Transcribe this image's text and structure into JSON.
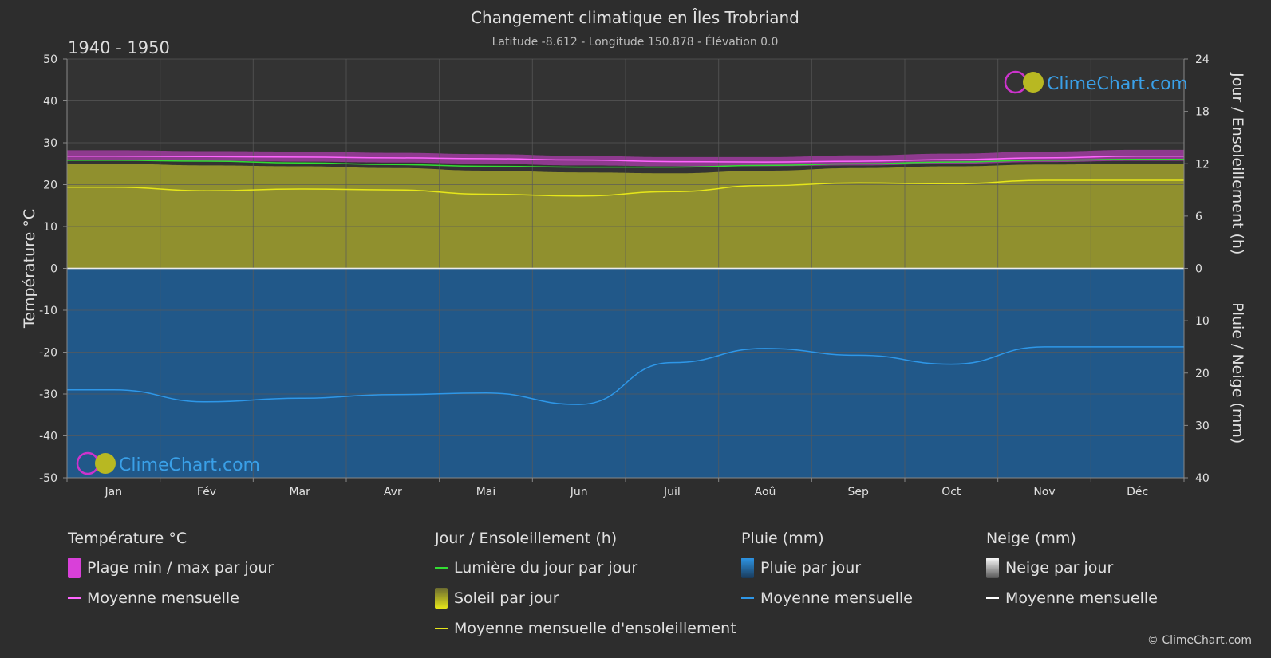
{
  "colors": {
    "bg": "#2d2d2d",
    "plot_bg": "#333333",
    "grid": "#5a5a5a",
    "text": "#e0e0e0",
    "temp_band": "#d940d9",
    "temp_line": "#ff66ff",
    "daylight": "#33dd33",
    "sun_fill": "#9a9a2e",
    "sun_line": "#e6e61a",
    "rain_fill": "#1f5f99",
    "rain_line": "#2e97e8",
    "snow_line": "#ffffff",
    "logo_text": "#3aa0e8"
  },
  "header": {
    "title": "Changement climatique en Îles Trobriand",
    "subtitle": "Latitude -8.612 - Longitude 150.878 - Élévation 0.0",
    "period": "1940 - 1950"
  },
  "logo": {
    "text": "ClimeChart.com"
  },
  "copyright": "© ClimeChart.com",
  "chart_data": {
    "type": "line",
    "x": [
      "Jan",
      "Fév",
      "Mar",
      "Avr",
      "Mai",
      "Jun",
      "Juil",
      "Aoû",
      "Sep",
      "Oct",
      "Nov",
      "Déc"
    ],
    "axes": {
      "left": {
        "label": "Température °C",
        "ticks": [
          50,
          40,
          30,
          20,
          10,
          0,
          -10,
          -20,
          -30,
          -40,
          -50
        ],
        "range": [
          -50,
          50
        ]
      },
      "right_top": {
        "label": "Jour / Ensoleillement (h)",
        "ticks": [
          24,
          18,
          12,
          6,
          0
        ],
        "range": [
          0,
          24
        ]
      },
      "right_bottom": {
        "label": "Pluie / Neige (mm)",
        "ticks": [
          0,
          10,
          20,
          30,
          40
        ],
        "range": [
          0,
          40
        ]
      }
    },
    "grid": true,
    "series": [
      {
        "name": "Plage min / max par jour",
        "kind": "band",
        "axis": "temperature",
        "min": [
          25.8,
          25.7,
          25.5,
          25.3,
          25.0,
          24.6,
          24.4,
          24.4,
          24.6,
          25.0,
          25.4,
          25.7
        ],
        "max": [
          28.2,
          28.0,
          27.9,
          27.6,
          27.3,
          26.9,
          26.6,
          26.6,
          27.0,
          27.4,
          27.9,
          28.3
        ]
      },
      {
        "name": "Moyenne mensuelle",
        "kind": "line",
        "axis": "temperature",
        "values": [
          26.8,
          26.7,
          26.6,
          26.4,
          26.2,
          25.9,
          25.5,
          25.4,
          25.6,
          26.0,
          26.4,
          26.8
        ]
      },
      {
        "name": "Lumière du jour par jour",
        "kind": "line",
        "axis": "hours",
        "values": [
          12.4,
          12.3,
          12.1,
          11.9,
          11.7,
          11.6,
          11.6,
          11.8,
          12.0,
          12.2,
          12.4,
          12.5
        ]
      },
      {
        "name": "Soleil par jour",
        "kind": "area",
        "axis": "hours",
        "values": [
          12.0,
          11.8,
          11.7,
          11.5,
          11.2,
          11.0,
          10.9,
          11.2,
          11.5,
          11.7,
          11.9,
          12.0
        ]
      },
      {
        "name": "Moyenne mensuelle d'ensoleillement",
        "kind": "line",
        "axis": "hours",
        "values": [
          9.3,
          8.9,
          9.1,
          9.0,
          8.5,
          8.3,
          8.8,
          9.5,
          9.8,
          9.7,
          10.1,
          10.1
        ]
      },
      {
        "name": "Pluie par jour",
        "kind": "area",
        "axis": "precip",
        "values": [
          40,
          40,
          40,
          40,
          40,
          40,
          40,
          40,
          40,
          40,
          40,
          40
        ]
      },
      {
        "name": "Moyenne mensuelle",
        "kind": "line",
        "axis": "precip",
        "values": [
          23.2,
          25.5,
          24.8,
          24.1,
          23.8,
          26.0,
          18.0,
          15.3,
          16.6,
          18.3,
          15.0,
          15.0
        ]
      },
      {
        "name": "Moyenne mensuelle",
        "kind": "line",
        "axis": "precip",
        "values": [
          0,
          0,
          0,
          0,
          0,
          0,
          0,
          0,
          0,
          0,
          0,
          0
        ]
      }
    ]
  },
  "legend": {
    "temperature": {
      "heading": "Température °C",
      "items": [
        "Plage min / max par jour",
        "Moyenne mensuelle"
      ]
    },
    "sun": {
      "heading": "Jour / Ensoleillement (h)",
      "items": [
        "Lumière du jour par jour",
        "Soleil par jour",
        "Moyenne mensuelle d'ensoleillement"
      ]
    },
    "rain": {
      "heading": "Pluie (mm)",
      "items": [
        "Pluie par jour",
        "Moyenne mensuelle"
      ]
    },
    "snow": {
      "heading": "Neige (mm)",
      "items": [
        "Neige par jour",
        "Moyenne mensuelle"
      ]
    }
  }
}
